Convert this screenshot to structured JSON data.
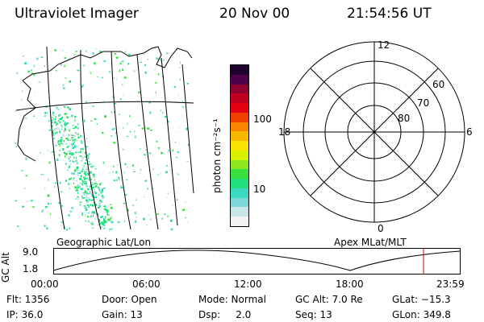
{
  "header": {
    "title": "Ultraviolet Imager",
    "date": "20 Nov 00",
    "time": "21:54:56 UT"
  },
  "colorbar": {
    "label": "photon cm⁻²s⁻¹",
    "tick_100": "100",
    "tick_10": "10",
    "colors": [
      "#f2f2f2",
      "#c8e6ea",
      "#7ed6d8",
      "#3cd8c0",
      "#22e080",
      "#3ae040",
      "#8ee820",
      "#d8f000",
      "#f8e400",
      "#f8b800",
      "#f88400",
      "#f04000",
      "#e00010",
      "#c00020",
      "#900030",
      "#500048",
      "#200030"
    ]
  },
  "polar_plot": {
    "mlt_top": "12",
    "mlt_left": "18",
    "mlt_right": "6",
    "mlt_bottom": "0",
    "lat_60": "60",
    "lat_70": "70",
    "lat_80": "80"
  },
  "timeline": {
    "left_label": "Geographic Lat/Lon",
    "right_label": "Apex MLat/MLT",
    "y_axis_title": "GC Alt",
    "y_max": "9.0",
    "y_min": "1.8",
    "x_ticks": [
      "00:00",
      "06:00",
      "12:00",
      "18:00",
      "23:59"
    ],
    "marker_color": "#cc0000"
  },
  "info": {
    "flt": "Flt: 1356",
    "ip": "IP: 36.0",
    "door": "Door: Open",
    "gain": "Gain: 13",
    "mode": "Mode: Normal",
    "dsp": "Dsp:     2.0",
    "gc_alt": "GC Alt: 7.0 Re",
    "seq": "Seq: 13",
    "glat": "GLat: −15.3",
    "glon": "GLon: 349.8"
  }
}
